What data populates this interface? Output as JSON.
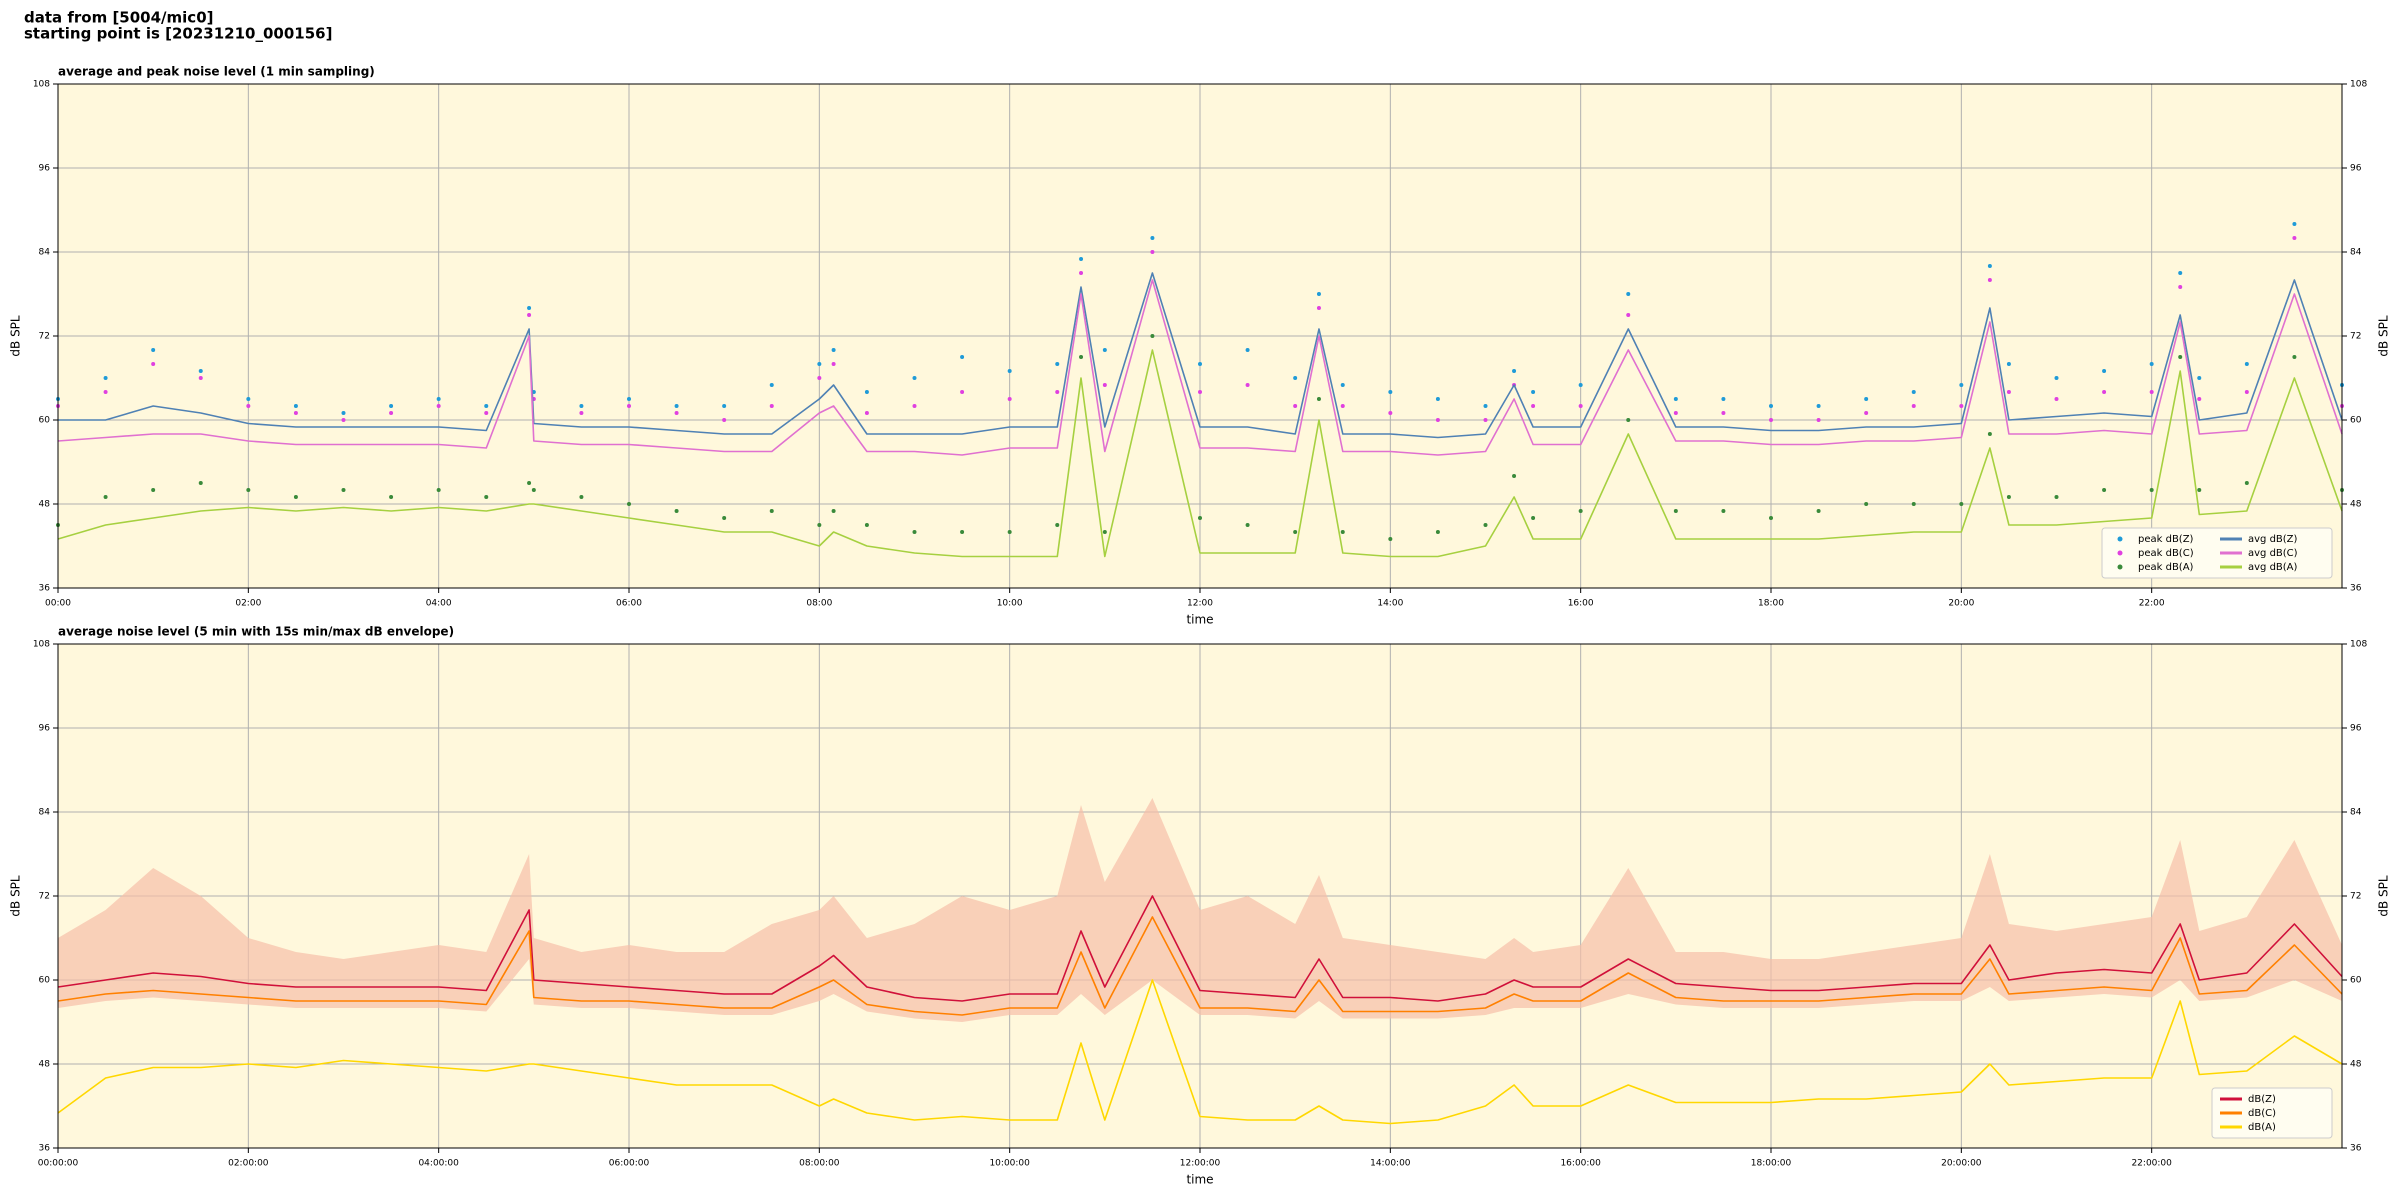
{
  "header": {
    "line1": "data from [5004/mic0]",
    "line2": "starting point is [20231210_000156]"
  },
  "chart_data": [
    {
      "type": "line",
      "title": "average and peak noise level (1 min sampling)",
      "xlabel": "time",
      "ylabel": "dB SPL",
      "y2label": "dB SPL",
      "x": [
        0,
        0.5,
        1,
        1.5,
        2,
        2.5,
        3,
        3.5,
        4,
        4.5,
        4.95,
        5,
        5.5,
        6,
        6.5,
        7,
        7.5,
        8,
        8.15,
        8.5,
        9,
        9.5,
        10,
        10.5,
        10.75,
        11,
        11.5,
        12,
        12.5,
        13,
        13.25,
        13.5,
        14,
        14.5,
        15,
        15.3,
        15.5,
        16,
        16.5,
        17,
        17.5,
        18,
        18.5,
        19,
        19.5,
        20,
        20.3,
        20.5,
        21,
        21.5,
        22,
        22.3,
        22.5,
        23,
        23.5,
        24
      ],
      "xlim": [
        0,
        24
      ],
      "xticks": [
        {
          "value": 0,
          "label": "00:00"
        },
        {
          "value": 2,
          "label": "02:00"
        },
        {
          "value": 4,
          "label": "04:00"
        },
        {
          "value": 6,
          "label": "06:00"
        },
        {
          "value": 8,
          "label": "08:00"
        },
        {
          "value": 10,
          "label": "10:00"
        },
        {
          "value": 12,
          "label": "12:00"
        },
        {
          "value": 14,
          "label": "14:00"
        },
        {
          "value": 16,
          "label": "16:00"
        },
        {
          "value": 18,
          "label": "18:00"
        },
        {
          "value": 20,
          "label": "20:00"
        },
        {
          "value": 22,
          "label": "22:00"
        }
      ],
      "ylim": [
        36,
        108
      ],
      "yticks": [
        36,
        48,
        60,
        72,
        84,
        96,
        108
      ],
      "y2lim": [
        36,
        108
      ],
      "y2ticks": [
        36,
        48,
        60,
        72,
        84,
        96,
        108
      ],
      "grid": true,
      "legend": "lower right",
      "legend_columns": 2,
      "series": [
        {
          "name": "peak dB(Z)",
          "color": "#1f9bd8",
          "style": "points",
          "values": [
            63,
            66,
            70,
            67,
            63,
            62,
            61,
            62,
            63,
            62,
            76,
            64,
            62,
            63,
            62,
            62,
            65,
            68,
            70,
            64,
            66,
            69,
            67,
            68,
            83,
            70,
            86,
            68,
            70,
            66,
            78,
            65,
            64,
            63,
            62,
            67,
            64,
            65,
            78,
            63,
            63,
            62,
            62,
            63,
            64,
            65,
            82,
            68,
            66,
            67,
            68,
            81,
            66,
            68,
            88,
            65
          ]
        },
        {
          "name": "peak dB(C)",
          "color": "#e040e0",
          "style": "points",
          "values": [
            62,
            64,
            68,
            66,
            62,
            61,
            60,
            61,
            62,
            61,
            75,
            63,
            61,
            62,
            61,
            60,
            62,
            66,
            68,
            61,
            62,
            64,
            63,
            64,
            81,
            65,
            84,
            64,
            65,
            62,
            76,
            62,
            61,
            60,
            60,
            65,
            62,
            62,
            75,
            61,
            61,
            60,
            60,
            61,
            62,
            62,
            80,
            64,
            63,
            64,
            64,
            79,
            63,
            64,
            86,
            62
          ]
        },
        {
          "name": "peak dB(A)",
          "color": "#3a8a3a",
          "style": "points",
          "values": [
            45,
            49,
            50,
            51,
            50,
            49,
            50,
            49,
            50,
            49,
            51,
            50,
            49,
            48,
            47,
            46,
            47,
            45,
            47,
            45,
            44,
            44,
            44,
            45,
            69,
            44,
            72,
            46,
            45,
            44,
            63,
            44,
            43,
            44,
            45,
            52,
            46,
            47,
            60,
            47,
            47,
            46,
            47,
            48,
            48,
            48,
            58,
            49,
            49,
            50,
            50,
            69,
            50,
            51,
            69,
            50
          ]
        },
        {
          "name": "avg dB(Z)",
          "color": "#4f81b4",
          "style": "line",
          "values": [
            60,
            60,
            62,
            61,
            59.5,
            59,
            59,
            59,
            59,
            58.5,
            73,
            59.5,
            59,
            59,
            58.5,
            58,
            58,
            63,
            65,
            58,
            58,
            58,
            59,
            59,
            79,
            59,
            81,
            59,
            59,
            58,
            73,
            58,
            58,
            57.5,
            58,
            65,
            59,
            59,
            73,
            59,
            59,
            58.5,
            58.5,
            59,
            59,
            59.5,
            76,
            60,
            60.5,
            61,
            60.5,
            75,
            60,
            61,
            80,
            60
          ]
        },
        {
          "name": "avg dB(C)",
          "color": "#e070d0",
          "style": "line",
          "values": [
            57,
            57.5,
            58,
            58,
            57,
            56.5,
            56.5,
            56.5,
            56.5,
            56,
            72,
            57,
            56.5,
            56.5,
            56,
            55.5,
            55.5,
            61,
            62,
            55.5,
            55.5,
            55,
            56,
            56,
            78,
            55.5,
            80,
            56,
            56,
            55.5,
            72,
            55.5,
            55.5,
            55,
            55.5,
            63,
            56.5,
            56.5,
            70,
            57,
            57,
            56.5,
            56.5,
            57,
            57,
            57.5,
            74,
            58,
            58,
            58.5,
            58,
            74,
            58,
            58.5,
            78,
            58
          ]
        },
        {
          "name": "avg dB(A)",
          "color": "#a6d040",
          "style": "line",
          "values": [
            43,
            45,
            46,
            47,
            47.5,
            47,
            47.5,
            47,
            47.5,
            47,
            48,
            48,
            47,
            46,
            45,
            44,
            44,
            42,
            44,
            42,
            41,
            40.5,
            40.5,
            40.5,
            66,
            40.5,
            70,
            41,
            41,
            41,
            60,
            41,
            40.5,
            40.5,
            42,
            49,
            43,
            43,
            58,
            43,
            43,
            43,
            43,
            43.5,
            44,
            44,
            56,
            45,
            45,
            45.5,
            46,
            67,
            46.5,
            47,
            66,
            47
          ]
        }
      ]
    },
    {
      "type": "line",
      "title": "average noise level (5 min with 15s min/max dB envelope)",
      "xlabel": "time",
      "ylabel": "dB SPL",
      "y2label": "dB SPL",
      "x": [
        0,
        0.5,
        1,
        1.5,
        2,
        2.5,
        3,
        3.5,
        4,
        4.5,
        4.95,
        5,
        5.5,
        6,
        6.5,
        7,
        7.5,
        8,
        8.15,
        8.5,
        9,
        9.5,
        10,
        10.5,
        10.75,
        11,
        11.5,
        12,
        12.5,
        13,
        13.25,
        13.5,
        14,
        14.5,
        15,
        15.3,
        15.5,
        16,
        16.5,
        17,
        17.5,
        18,
        18.5,
        19,
        19.5,
        20,
        20.3,
        20.5,
        21,
        21.5,
        22,
        22.3,
        22.5,
        23,
        23.5,
        24
      ],
      "xlim": [
        0,
        24
      ],
      "xticks": [
        {
          "value": 0,
          "label": "00:00:00"
        },
        {
          "value": 2,
          "label": "02:00:00"
        },
        {
          "value": 4,
          "label": "04:00:00"
        },
        {
          "value": 6,
          "label": "06:00:00"
        },
        {
          "value": 8,
          "label": "08:00:00"
        },
        {
          "value": 10,
          "label": "10:00:00"
        },
        {
          "value": 12,
          "label": "12:00:00"
        },
        {
          "value": 14,
          "label": "14:00:00"
        },
        {
          "value": 16,
          "label": "16:00:00"
        },
        {
          "value": 18,
          "label": "18:00:00"
        },
        {
          "value": 20,
          "label": "20:00:00"
        },
        {
          "value": 22,
          "label": "22:00:00"
        }
      ],
      "ylim": [
        36,
        108
      ],
      "yticks": [
        36,
        48,
        60,
        72,
        84,
        96,
        108
      ],
      "y2lim": [
        36,
        108
      ],
      "y2ticks": [
        36,
        48,
        60,
        72,
        84,
        96,
        108
      ],
      "grid": true,
      "legend": "lower right",
      "legend_columns": 1,
      "envelope": {
        "color": "#f6bfa8",
        "upper": [
          66,
          70,
          76,
          72,
          66,
          64,
          63,
          64,
          65,
          64,
          78,
          66,
          64,
          65,
          64,
          64,
          68,
          70,
          72,
          66,
          68,
          72,
          70,
          72,
          85,
          74,
          86,
          70,
          72,
          68,
          75,
          66,
          65,
          64,
          63,
          66,
          64,
          65,
          76,
          64,
          64,
          63,
          63,
          64,
          65,
          66,
          78,
          68,
          67,
          68,
          69,
          80,
          67,
          69,
          80,
          65
        ],
        "lower": [
          56,
          57,
          57.5,
          57,
          56.5,
          56,
          56,
          56,
          56,
          55.5,
          63,
          56.5,
          56,
          56,
          55.5,
          55,
          55,
          57,
          58,
          55.5,
          54.5,
          54,
          55,
          55,
          58,
          55,
          60,
          55,
          55,
          54.5,
          57,
          54.5,
          54.5,
          54.5,
          55,
          56,
          56,
          56,
          58,
          56.5,
          56,
          56,
          56,
          56.5,
          57,
          57,
          59,
          57,
          57.5,
          58,
          57.5,
          60,
          57,
          57.5,
          60,
          57
        ]
      },
      "series": [
        {
          "name": "dB(Z)",
          "color": "#d0103a",
          "style": "line",
          "values": [
            59,
            60,
            61,
            60.5,
            59.5,
            59,
            59,
            59,
            59,
            58.5,
            70,
            60,
            59.5,
            59,
            58.5,
            58,
            58,
            62,
            63.5,
            59,
            57.5,
            57,
            58,
            58,
            67,
            59,
            72,
            58.5,
            58,
            57.5,
            63,
            57.5,
            57.5,
            57,
            58,
            60,
            59,
            59,
            63,
            59.5,
            59,
            58.5,
            58.5,
            59,
            59.5,
            59.5,
            65,
            60,
            61,
            61.5,
            61,
            68,
            60,
            61,
            68,
            60.5
          ]
        },
        {
          "name": "dB(C)",
          "color": "#ff8000",
          "style": "line",
          "values": [
            57,
            58,
            58.5,
            58,
            57.5,
            57,
            57,
            57,
            57,
            56.5,
            67,
            57.5,
            57,
            57,
            56.5,
            56,
            56,
            59,
            60,
            56.5,
            55.5,
            55,
            56,
            56,
            64,
            56,
            69,
            56,
            56,
            55.5,
            60,
            55.5,
            55.5,
            55.5,
            56,
            58,
            57,
            57,
            61,
            57.5,
            57,
            57,
            57,
            57.5,
            58,
            58,
            63,
            58,
            58.5,
            59,
            58.5,
            66,
            58,
            58.5,
            65,
            58
          ]
        },
        {
          "name": "dB(A)",
          "color": "#ffd700",
          "style": "line",
          "values": [
            41,
            46,
            47.5,
            47.5,
            48,
            47.5,
            48.5,
            48,
            47.5,
            47,
            48,
            48,
            47,
            46,
            45,
            45,
            45,
            42,
            43,
            41,
            40,
            40.5,
            40,
            40,
            51,
            40,
            60,
            40.5,
            40,
            40,
            42,
            40,
            39.5,
            40,
            42,
            45,
            42,
            42,
            45,
            42.5,
            42.5,
            42.5,
            43,
            43,
            43.5,
            44,
            48,
            45,
            45.5,
            46,
            46,
            57,
            46.5,
            47,
            52,
            48
          ]
        }
      ]
    }
  ]
}
